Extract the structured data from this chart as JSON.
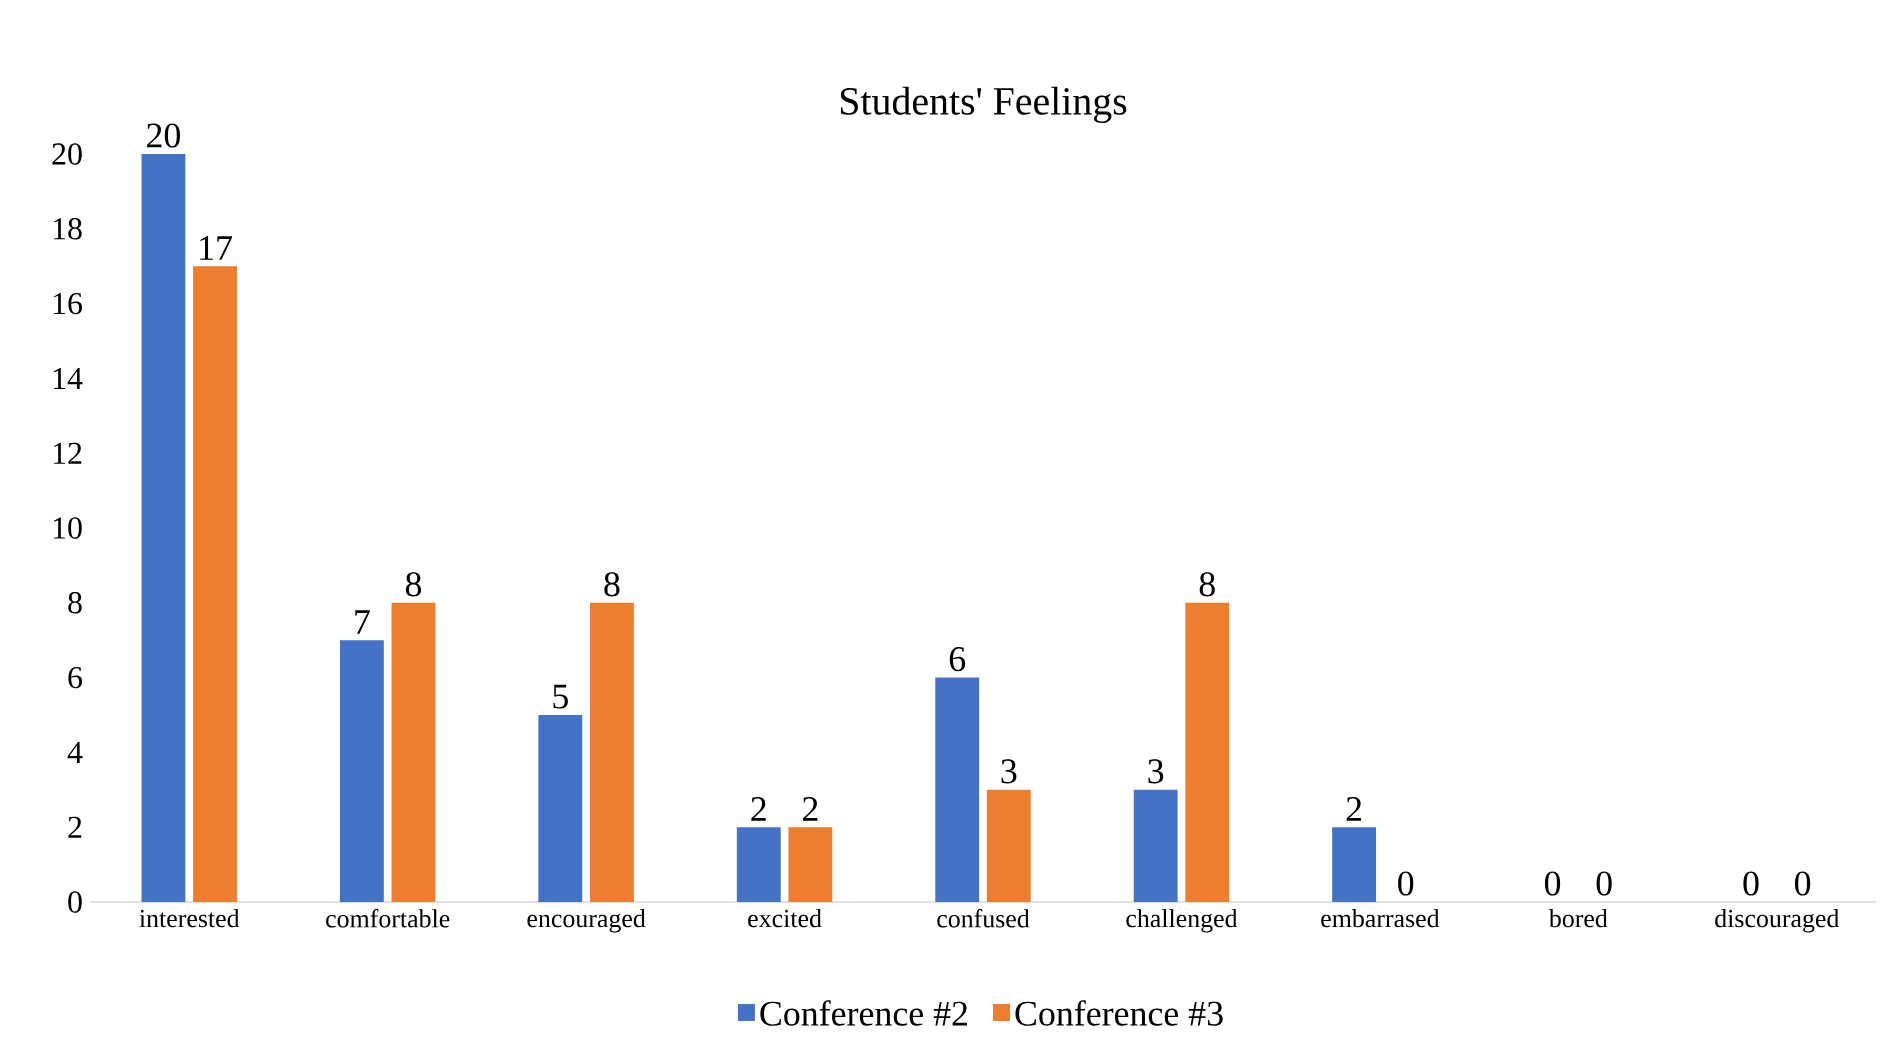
{
  "chart_data": {
    "type": "bar",
    "title": "Students' Feelings",
    "categories": [
      "interested",
      "comfortable",
      "encouraged",
      "excited",
      "confused",
      "challenged",
      "embarrased",
      "bored",
      "discouraged"
    ],
    "series": [
      {
        "name": "Conference #2",
        "color": "#4472c4",
        "values": [
          20,
          7,
          5,
          2,
          6,
          3,
          2,
          0,
          0
        ]
      },
      {
        "name": "Conference #3",
        "color": "#ed7d31",
        "values": [
          17,
          8,
          8,
          2,
          3,
          8,
          0,
          0,
          0
        ]
      }
    ],
    "ylim": [
      0,
      20
    ],
    "yticks": [
      0,
      2,
      4,
      6,
      8,
      10,
      12,
      14,
      16,
      18,
      20
    ],
    "data_labels": true,
    "legend": "bottom",
    "grid": false
  }
}
